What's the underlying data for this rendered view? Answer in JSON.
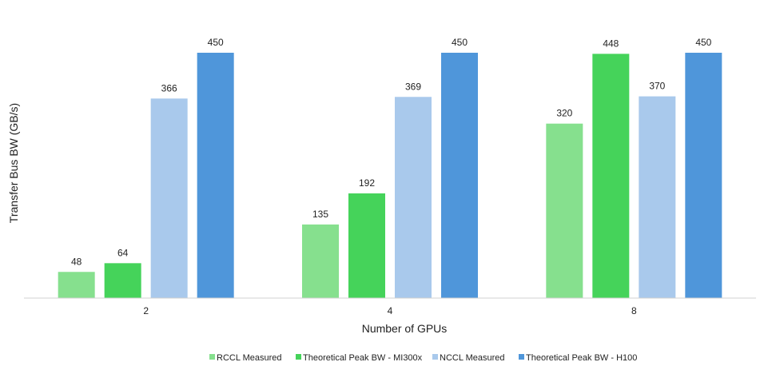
{
  "chart_data": {
    "type": "bar",
    "title": "",
    "xlabel": "Number of GPUs",
    "ylabel": "Transfer Bus BW (GB/s)",
    "categories": [
      "2",
      "4",
      "8"
    ],
    "ylim": [
      0,
      460
    ],
    "grid": false,
    "legend_position": "bottom",
    "series": [
      {
        "name": "RCCL Measured",
        "color": "#86E08E",
        "values": [
          48,
          135,
          320
        ]
      },
      {
        "name": "Theoretical Peak BW - MI300x",
        "color": "#45D35A",
        "values": [
          64,
          192,
          448
        ]
      },
      {
        "name": "NCCL Measured",
        "color": "#A9C9EC",
        "values": [
          366,
          369,
          370
        ]
      },
      {
        "name": "Theoretical Peak BW - H100",
        "color": "#4F96DA",
        "values": [
          450,
          450,
          450
        ]
      }
    ]
  }
}
